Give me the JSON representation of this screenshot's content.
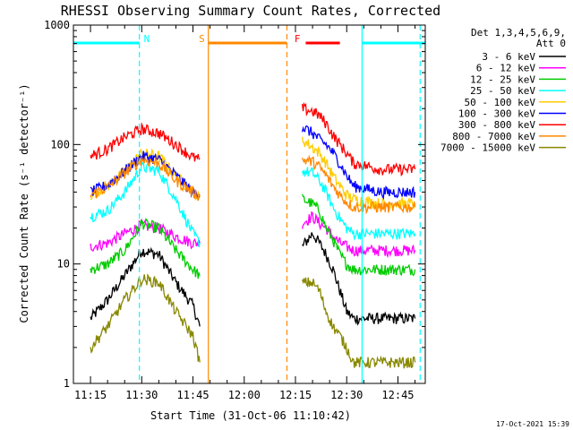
{
  "chart_data": {
    "type": "line",
    "title": "RHESSI Observing Summary Count Rates, Corrected",
    "xlabel": "Start Time (31-Oct-06 11:10:42)",
    "ylabel": "Corrected Count Rate (s⁻¹ detector⁻¹)",
    "y_scale": "log",
    "ylim": [
      1,
      1000
    ],
    "y_ticks": [
      1,
      10,
      100,
      1000
    ],
    "y_tick_labels": [
      "1",
      "10",
      "100",
      "1000"
    ],
    "x_unit": "minutes since 11:10",
    "xlim": [
      0,
      103
    ],
    "x_ticks": [
      5,
      20,
      35,
      50,
      65,
      80,
      95
    ],
    "x_tick_labels": [
      "11:15",
      "11:30",
      "11:45",
      "12:00",
      "12:15",
      "12:30",
      "12:45"
    ],
    "legend_header": [
      "Det 1,3,4,5,6,9,",
      "Att 0"
    ],
    "legend_position": "right",
    "timestamp": "17-Oct-2021 15:39",
    "series": [
      {
        "name": "3 - 6 keV",
        "color": "#000000",
        "segments": [
          {
            "x": [
              5,
              10,
              15,
              20,
              25,
              30,
              35,
              37
            ],
            "y": [
              3.5,
              5,
              8,
              13,
              12,
              7,
              4.5,
              3
            ]
          },
          {
            "x": [
              67,
              70,
              72,
              74,
              76,
              78,
              80,
              82,
              90,
              100
            ],
            "y": [
              14,
              18,
              15,
              12,
              9,
              6,
              4,
              3.5,
              3.5,
              3.5
            ]
          }
        ]
      },
      {
        "name": "6 - 12 keV",
        "color": "#ff00ff",
        "segments": [
          {
            "x": [
              5,
              10,
              15,
              20,
              25,
              30,
              35,
              37
            ],
            "y": [
              14,
              15,
              18,
              21,
              20,
              17,
              15,
              15
            ]
          },
          {
            "x": [
              67,
              70,
              72,
              74,
              76,
              78,
              80,
              82,
              90,
              100
            ],
            "y": [
              22,
              25,
              22,
              20,
              17,
              15,
              14,
              13,
              13,
              13
            ]
          }
        ]
      },
      {
        "name": "12 - 25 keV",
        "color": "#00cc00",
        "segments": [
          {
            "x": [
              5,
              10,
              15,
              20,
              25,
              30,
              35,
              37
            ],
            "y": [
              9,
              10,
              13,
              22,
              20,
              13,
              9,
              8
            ]
          },
          {
            "x": [
              67,
              70,
              72,
              74,
              76,
              78,
              80,
              82,
              90,
              100
            ],
            "y": [
              35,
              32,
              28,
              20,
              16,
              12,
              10,
              9,
              9,
              9
            ]
          }
        ]
      },
      {
        "name": "25 - 50 keV",
        "color": "#00ffff",
        "segments": [
          {
            "x": [
              5,
              10,
              15,
              20,
              25,
              30,
              35,
              37
            ],
            "y": [
              25,
              28,
              40,
              65,
              60,
              35,
              18,
              15
            ]
          },
          {
            "x": [
              67,
              70,
              72,
              74,
              76,
              78,
              80,
              82,
              90,
              100
            ],
            "y": [
              60,
              58,
              50,
              40,
              30,
              24,
              20,
              18,
              18,
              18
            ]
          }
        ]
      },
      {
        "name": "50 - 100 keV",
        "color": "#ffcc00",
        "segments": [
          {
            "x": [
              5,
              10,
              15,
              20,
              25,
              30,
              35,
              37
            ],
            "y": [
              38,
              45,
              60,
              85,
              80,
              55,
              40,
              36
            ]
          },
          {
            "x": [
              67,
              70,
              72,
              74,
              76,
              78,
              80,
              82,
              90,
              100
            ],
            "y": [
              110,
              95,
              85,
              70,
              55,
              45,
              38,
              35,
              32,
              32
            ]
          }
        ]
      },
      {
        "name": "100 - 300 keV",
        "color": "#0000ff",
        "segments": [
          {
            "x": [
              5,
              10,
              15,
              20,
              25,
              30,
              35,
              37
            ],
            "y": [
              40,
              46,
              60,
              80,
              75,
              55,
              40,
              38
            ]
          },
          {
            "x": [
              67,
              70,
              72,
              74,
              76,
              78,
              80,
              82,
              90,
              100
            ],
            "y": [
              140,
              125,
              110,
              100,
              85,
              70,
              55,
              45,
              40,
              40
            ]
          }
        ]
      },
      {
        "name": "300 - 800 keV",
        "color": "#ff0000",
        "segments": [
          {
            "x": [
              5,
              10,
              15,
              20,
              25,
              30,
              35,
              37
            ],
            "y": [
              80,
              92,
              115,
              135,
              125,
              100,
              78,
              75
            ]
          },
          {
            "x": [
              67,
              70,
              72,
              74,
              76,
              78,
              80,
              82,
              90,
              100
            ],
            "y": [
              200,
              190,
              175,
              150,
              120,
              100,
              85,
              70,
              62,
              62
            ]
          }
        ]
      },
      {
        "name": "800 - 7000 keV",
        "color": "#ff8800",
        "segments": [
          {
            "x": [
              5,
              10,
              15,
              20,
              25,
              30,
              35,
              37
            ],
            "y": [
              38,
              44,
              58,
              75,
              70,
              50,
              40,
              37
            ]
          },
          {
            "x": [
              67,
              70,
              72,
              74,
              76,
              78,
              80,
              82,
              90,
              100
            ],
            "y": [
              75,
              72,
              65,
              55,
              45,
              38,
              33,
              30,
              30,
              30
            ]
          }
        ]
      },
      {
        "name": "7000 - 15000 keV",
        "color": "#888800",
        "segments": [
          {
            "x": [
              5,
              10,
              15,
              20,
              25,
              30,
              35,
              37
            ],
            "y": [
              2,
              3,
              5,
              7.5,
              7,
              4,
              2.5,
              1.5
            ]
          },
          {
            "x": [
              67,
              70,
              72,
              74,
              76,
              78,
              80,
              82,
              90,
              100
            ],
            "y": [
              7,
              7,
              6,
              4,
              3,
              2.5,
              2,
              1.5,
              1.5,
              1.5
            ]
          }
        ]
      }
    ],
    "flag_bars": [
      {
        "label": "N",
        "color": "#00ffff",
        "x0": 0,
        "x1": 19.3
      },
      {
        "label": "S",
        "color": "#ff8800",
        "x0": 39.5,
        "x1": 62.5
      },
      {
        "label": "F",
        "color": "#ff0000",
        "x0": 68,
        "x1": 78
      },
      {
        "label": "",
        "color": "#00ffff",
        "x0": 84.5,
        "x1": 103
      }
    ],
    "markers": [
      {
        "x": 19.3,
        "color": "#00ffff",
        "style": "dashed"
      },
      {
        "x": 39.5,
        "color": "#ff8800",
        "style": "solid"
      },
      {
        "x": 62.5,
        "color": "#ff8800",
        "style": "dashed"
      },
      {
        "x": 84.5,
        "color": "#00ffff",
        "style": "solid"
      },
      {
        "x": 101.5,
        "color": "#00ffff",
        "style": "dashed"
      }
    ]
  }
}
